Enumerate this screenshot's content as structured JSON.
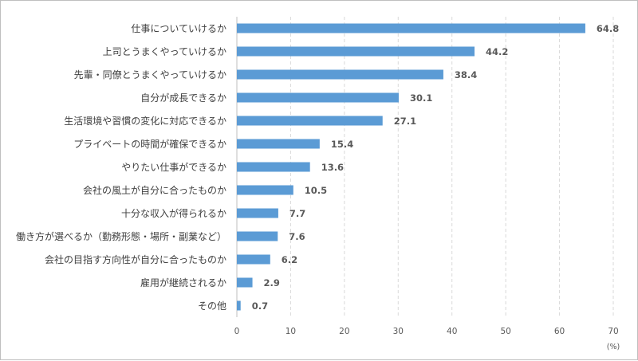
{
  "chart_data": {
    "type": "bar",
    "orientation": "horizontal",
    "categories": [
      "仕事についていけるか",
      "上司とうまくやっていけるか",
      "先輩・同僚とうまくやっていけるか",
      "自分が成長できるか",
      "生活環境や習慣の変化に対応できるか",
      "プライベートの時間が確保できるか",
      "やりたい仕事ができるか",
      "会社の風土が自分に合ったものか",
      "十分な収入が得られるか",
      "働き方が選べるか（勤務形態・場所・副業など）",
      "会社の目指す方向性が自分に合ったものか",
      "雇用が継続されるか",
      "その他"
    ],
    "values": [
      64.8,
      44.2,
      38.4,
      30.1,
      27.1,
      15.4,
      13.6,
      10.5,
      7.7,
      7.6,
      6.2,
      2.9,
      0.7
    ],
    "value_labels": [
      "64.8",
      "44.2",
      "38.4",
      "30.1",
      "27.1",
      "15.4",
      "13.6",
      "10.5",
      "7.7",
      "7.6",
      "6.2",
      "2.9",
      "0.7"
    ],
    "xlim": [
      0,
      70
    ],
    "xticks": [
      "0",
      "10",
      "20",
      "30",
      "40",
      "50",
      "60",
      "70"
    ],
    "xunit": "(%)",
    "grid": "vertical-dashed",
    "bar_color": "#5b9bd5",
    "grid_color": "#d9d9d9"
  }
}
